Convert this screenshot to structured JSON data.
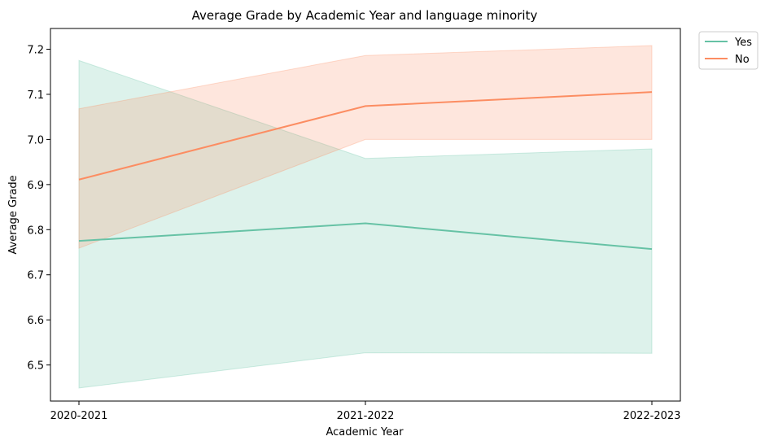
{
  "chart_data": {
    "type": "line",
    "title": "Average Grade by Academic Year and language minority",
    "xlabel": "Academic Year",
    "ylabel": "Average Grade",
    "categories": [
      "2020-2021",
      "2021-2022",
      "2022-2023"
    ],
    "ylim": [
      6.42,
      7.246
    ],
    "yticks": [
      6.5,
      6.6,
      6.7,
      6.8,
      6.9,
      7.0,
      7.1,
      7.2
    ],
    "ytick_labels": [
      "6.5",
      "6.6",
      "6.7",
      "6.8",
      "6.9",
      "7.0",
      "7.1",
      "7.2"
    ],
    "grid": false,
    "legend_placement": "outside-top-right",
    "series": [
      {
        "name": "Yes",
        "color": "#66c2a5",
        "values": [
          6.775,
          6.814,
          6.757
        ],
        "ci_low": [
          6.449,
          6.527,
          6.526
        ],
        "ci_high": [
          7.175,
          6.958,
          6.979
        ]
      },
      {
        "name": "No",
        "color": "#fc8d62",
        "values": [
          6.911,
          7.074,
          7.105
        ],
        "ci_low": [
          6.759,
          7.0,
          7.0
        ],
        "ci_high": [
          7.068,
          7.186,
          7.208
        ]
      }
    ]
  }
}
